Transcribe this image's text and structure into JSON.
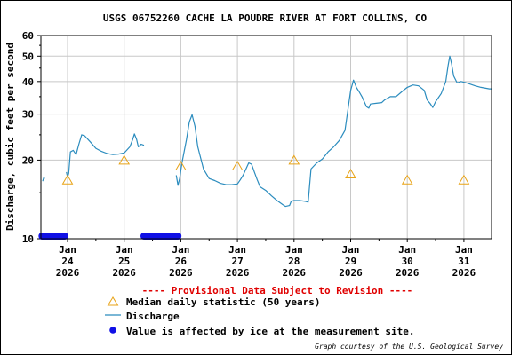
{
  "chart_data": {
    "type": "line",
    "title": "USGS 06752260 CACHE LA POUDRE RIVER AT FORT COLLINS, CO",
    "ylabel": "Discharge, cubic feet per second",
    "xlabel": "",
    "y_scale": "log",
    "ylim": [
      10,
      60
    ],
    "y_ticks": [
      10,
      20,
      30,
      40,
      50,
      60
    ],
    "y_tick_labels": [
      "10",
      "20",
      "30",
      "40",
      "50",
      "60"
    ],
    "grid": true,
    "x_ticks": [
      {
        "day": 24,
        "lines": [
          "Jan",
          "24",
          "2026"
        ]
      },
      {
        "day": 25,
        "lines": [
          "Jan",
          "25",
          "2026"
        ]
      },
      {
        "day": 26,
        "lines": [
          "Jan",
          "26",
          "2026"
        ]
      },
      {
        "day": 27,
        "lines": [
          "Jan",
          "27",
          "2026"
        ]
      },
      {
        "day": 28,
        "lines": [
          "Jan",
          "28",
          "2026"
        ]
      },
      {
        "day": 29,
        "lines": [
          "Jan",
          "29",
          "2026"
        ]
      },
      {
        "day": 30,
        "lines": [
          "Jan",
          "30",
          "2026"
        ]
      },
      {
        "day": 31,
        "lines": [
          "Jan",
          "31",
          "2026"
        ]
      }
    ],
    "xlim_day": [
      23.55,
      31.35
    ],
    "series": [
      {
        "name": "Discharge",
        "color": "#2b8cbe",
        "segments": [
          [
            [
              23.56,
              16.6
            ],
            [
              23.58,
              17.1
            ],
            [
              23.6,
              17.0
            ]
          ],
          [
            [
              23.98,
              18.0
            ],
            [
              24.0,
              17.2
            ],
            [
              24.02,
              17.8
            ],
            [
              24.05,
              21.5
            ],
            [
              24.1,
              21.8
            ],
            [
              24.15,
              21.0
            ],
            [
              24.2,
              23.0
            ],
            [
              24.25,
              25.0
            ],
            [
              24.3,
              24.8
            ],
            [
              24.4,
              23.5
            ],
            [
              24.5,
              22.2
            ],
            [
              24.6,
              21.6
            ],
            [
              24.7,
              21.2
            ],
            [
              24.8,
              21.0
            ],
            [
              24.9,
              21.1
            ],
            [
              25.0,
              21.3
            ],
            [
              25.1,
              22.5
            ],
            [
              25.15,
              24.0
            ],
            [
              25.18,
              25.2
            ],
            [
              25.22,
              24.0
            ],
            [
              25.25,
              22.5
            ],
            [
              25.3,
              23.0
            ],
            [
              25.35,
              22.8
            ]
          ],
          [
            [
              25.92,
              17.5
            ],
            [
              25.95,
              16.0
            ],
            [
              25.98,
              17.0
            ],
            [
              26.02,
              19.5
            ],
            [
              26.1,
              24.0
            ],
            [
              26.15,
              28.0
            ],
            [
              26.2,
              29.8
            ],
            [
              26.25,
              27.0
            ],
            [
              26.3,
              22.5
            ],
            [
              26.4,
              18.5
            ],
            [
              26.5,
              17.0
            ],
            [
              26.6,
              16.7
            ],
            [
              26.7,
              16.3
            ],
            [
              26.75,
              16.2
            ],
            [
              26.8,
              16.1
            ],
            [
              26.9,
              16.1
            ],
            [
              27.0,
              16.2
            ],
            [
              27.05,
              16.8
            ],
            [
              27.1,
              17.5
            ],
            [
              27.2,
              19.5
            ],
            [
              27.25,
              19.3
            ],
            [
              27.3,
              18.0
            ],
            [
              27.35,
              16.8
            ],
            [
              27.4,
              15.8
            ],
            [
              27.5,
              15.3
            ],
            [
              27.6,
              14.6
            ],
            [
              27.7,
              14.0
            ],
            [
              27.8,
              13.5
            ],
            [
              27.85,
              13.3
            ],
            [
              27.92,
              13.4
            ],
            [
              27.95,
              13.9
            ],
            [
              28.0,
              14.0
            ],
            [
              28.1,
              14.0
            ],
            [
              28.2,
              13.9
            ],
            [
              28.25,
              13.8
            ],
            [
              28.3,
              18.5
            ],
            [
              28.4,
              19.5
            ],
            [
              28.5,
              20.2
            ],
            [
              28.6,
              21.5
            ],
            [
              28.7,
              22.5
            ],
            [
              28.8,
              23.8
            ],
            [
              28.9,
              26.0
            ],
            [
              28.95,
              31.0
            ],
            [
              29.0,
              37.0
            ],
            [
              29.05,
              40.5
            ],
            [
              29.1,
              38.0
            ],
            [
              29.15,
              36.5
            ],
            [
              29.2,
              35.0
            ],
            [
              29.28,
              32.0
            ],
            [
              29.32,
              31.6
            ],
            [
              29.35,
              32.8
            ],
            [
              29.45,
              33.0
            ],
            [
              29.55,
              33.2
            ],
            [
              29.6,
              34.0
            ],
            [
              29.7,
              35.0
            ],
            [
              29.8,
              35.0
            ],
            [
              29.9,
              36.5
            ],
            [
              30.0,
              38.0
            ],
            [
              30.1,
              38.8
            ],
            [
              30.2,
              38.5
            ],
            [
              30.3,
              37.0
            ],
            [
              30.35,
              34.0
            ],
            [
              30.4,
              33.0
            ],
            [
              30.45,
              31.8
            ],
            [
              30.5,
              33.5
            ],
            [
              30.6,
              36.0
            ],
            [
              30.68,
              40.0
            ],
            [
              30.72,
              46.0
            ],
            [
              30.75,
              50.0
            ],
            [
              30.78,
              47.0
            ],
            [
              30.82,
              42.0
            ],
            [
              30.88,
              39.5
            ],
            [
              30.95,
              40.0
            ],
            [
              31.05,
              39.5
            ],
            [
              31.2,
              38.5
            ],
            [
              31.3,
              38.0
            ],
            [
              31.45,
              37.5
            ],
            [
              31.5,
              37.5
            ],
            [
              31.55,
              37.0
            ],
            [
              31.6,
              36.8
            ],
            [
              31.65,
              37.2
            ],
            [
              31.7,
              34.5
            ],
            [
              31.75,
              36.5
            ],
            [
              31.8,
              35.5
            ],
            [
              31.85,
              36.0
            ],
            [
              31.9,
              36.0
            ]
          ]
        ]
      },
      {
        "name": "Median daily statistic (50 years)",
        "color": "#e8a317",
        "x_day": [
          24.0,
          25.0,
          26.0,
          27.0,
          28.0,
          29.0,
          30.0,
          31.0
        ],
        "values": [
          16.8,
          20.0,
          19.0,
          19.0,
          20.0,
          17.7,
          16.8,
          16.8
        ]
      },
      {
        "name": "Value is affected by ice at the measurement site.",
        "color": "#1010e6",
        "ranges": [
          [
            23.55,
            23.95
          ],
          [
            25.35,
            25.95
          ]
        ]
      }
    ],
    "notice": "---- Provisional Data Subject to Revision ----",
    "legend_placement": "bottom",
    "legend": [
      {
        "symbol": "triangle",
        "label": "Median daily statistic (50 years)"
      },
      {
        "symbol": "line",
        "label": "Discharge"
      },
      {
        "symbol": "dot",
        "label": "Value is affected by ice at the measurement site."
      }
    ],
    "credit": "Graph courtesy of the U.S. Geological Survey",
    "colors": {
      "axis": "#000000",
      "grid": "#c8c8c8",
      "notice": "#e00000"
    }
  }
}
